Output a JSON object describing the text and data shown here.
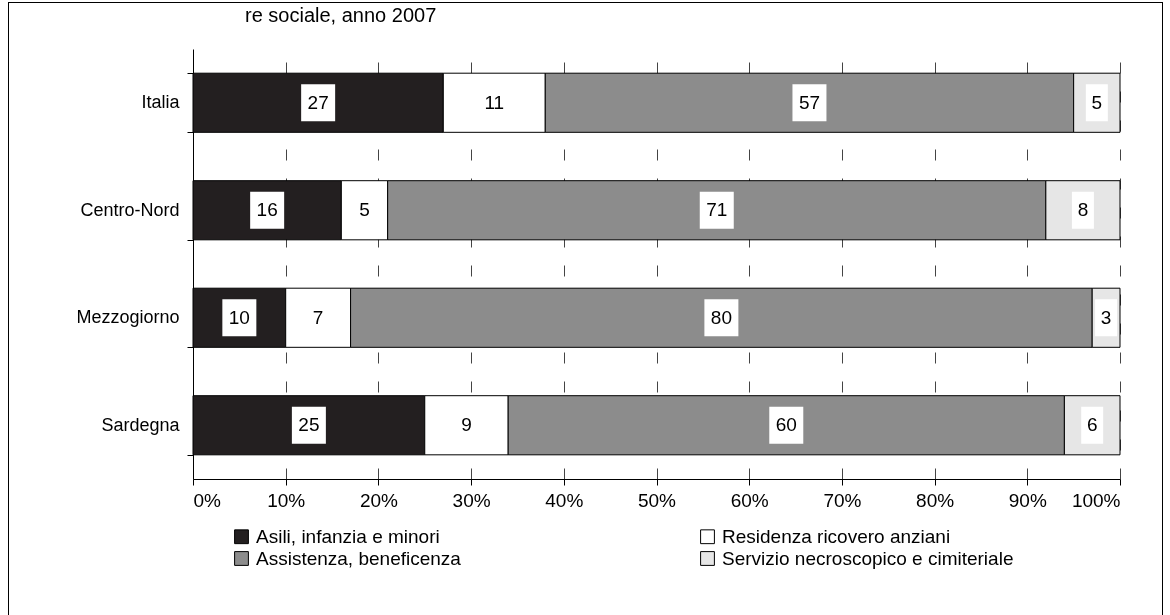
{
  "chart_data": {
    "type": "bar",
    "orientation": "horizontal",
    "stacked": true,
    "title": "re sociale, anno 2007",
    "categories": [
      "Italia",
      "Centro-Nord",
      "Mezzogiorno",
      "Sardegna"
    ],
    "series": [
      {
        "name": "Asili, infanzia e minori",
        "color": "#231f20",
        "values": [
          27,
          16,
          10,
          25
        ]
      },
      {
        "name": "Residenza ricovero anziani",
        "color": "#ffffff",
        "values": [
          11,
          5,
          7,
          9
        ]
      },
      {
        "name": "Assistenza, beneficenza",
        "color": "#8c8c8c",
        "values": [
          57,
          71,
          80,
          60
        ]
      },
      {
        "name": "Servizio necroscopico e cimiteriale",
        "color": "#e6e6e6",
        "values": [
          5,
          8,
          3,
          6
        ]
      }
    ],
    "xlim": [
      0,
      100
    ],
    "xticks": [
      {
        "value": 0,
        "label": "0%"
      },
      {
        "value": 10,
        "label": "10%"
      },
      {
        "value": 20,
        "label": "20%"
      },
      {
        "value": 30,
        "label": "30%"
      },
      {
        "value": 40,
        "label": "40%"
      },
      {
        "value": 50,
        "label": "50%"
      },
      {
        "value": 60,
        "label": "60%"
      },
      {
        "value": 70,
        "label": "70%"
      },
      {
        "value": 80,
        "label": "80%"
      },
      {
        "value": 90,
        "label": "90%"
      },
      {
        "value": 100,
        "label": "100%"
      }
    ],
    "grid": "x",
    "legend": "bottom",
    "data_labels": true
  }
}
